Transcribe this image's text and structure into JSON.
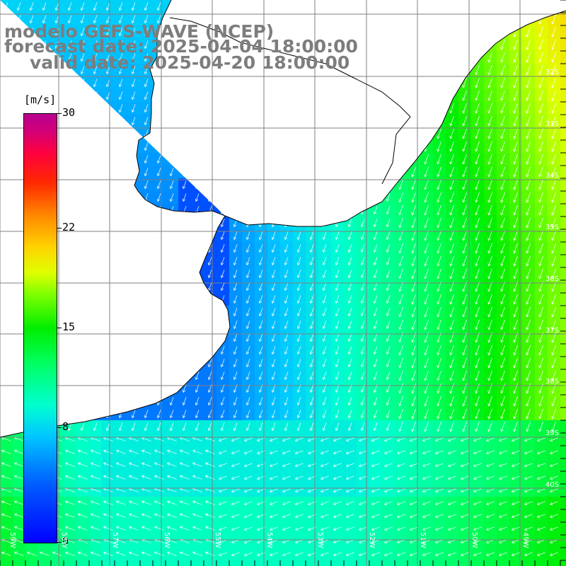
{
  "title": {
    "line1": "modelo GEFS-WAVE (NCEP)",
    "line2": "forecast date: 2025-04-04 18:00:00",
    "line3": "valid date: 2025-04-20 18:00:00"
  },
  "colorbar": {
    "unit": "[m/s]",
    "min": 0,
    "max": 30,
    "ticks": [
      "0",
      "8",
      "15",
      "22",
      "30"
    ],
    "colors": [
      "#0000ff",
      "#0060ff",
      "#00c8ff",
      "#00ffd0",
      "#00ff60",
      "#00ee00",
      "#80ff00",
      "#e0ff00",
      "#ffd200",
      "#ff8c00",
      "#ff2800",
      "#ff0040",
      "#d20078"
    ]
  },
  "map": {
    "lon_range": [
      -59,
      -48
    ],
    "lat_range": [
      -41,
      -30.5
    ],
    "lat_labels": [
      "32S",
      "33S",
      "34S",
      "35S",
      "36S",
      "37S",
      "38S",
      "39S",
      "40S"
    ],
    "lon_labels": [
      "59W",
      "58W",
      "57W",
      "56W",
      "55W",
      "54W",
      "53W",
      "52W",
      "51W",
      "50W",
      "49W"
    ],
    "land_color": "#ffffff",
    "coast_color": "#000000",
    "grid_color": "#808080",
    "arrow_color": "#ffffff",
    "wind_field_description_color_low": "#1a6cff",
    "wind_field_description_color_high": "#40ff00"
  }
}
